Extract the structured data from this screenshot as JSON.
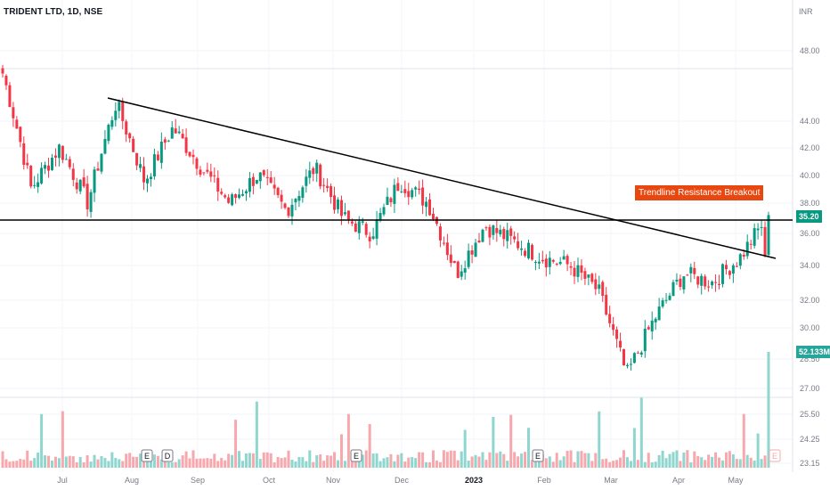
{
  "header": {
    "symbol": "TRIDENT LTD, 1D, NSE",
    "currency": "INR"
  },
  "annotation": "Trendline Resistance Breakout",
  "last_price_label": "35.20",
  "volume_label": "52.133M",
  "colors": {
    "up": "#089981",
    "down": "#f23645",
    "vol_up": "#8fd6cf",
    "vol_down": "#f7a8ad",
    "line": "#000000",
    "annotation": "#e8470f"
  },
  "event_markers": [
    {
      "label": "E",
      "month_index": 1
    },
    {
      "label": "D",
      "month_index": 2
    },
    {
      "label": "E",
      "month_index": 4
    },
    {
      "label": "E",
      "month_index": 7
    },
    {
      "label": "E",
      "month_index": 11
    }
  ],
  "chart_data": {
    "type": "candlestick",
    "y_axis": {
      "ticks": [
        "48.00",
        "44.00",
        "42.00",
        "40.00",
        "38.00",
        "36.00",
        "34.00",
        "32.00",
        "30.00",
        "28.50",
        "27.00",
        "25.50",
        "24.25",
        "23.15"
      ],
      "scale": "log"
    },
    "x_axis": {
      "ticks": [
        "Jul",
        "Aug",
        "Sep",
        "Oct",
        "Nov",
        "Dec",
        "2023",
        "Feb",
        "Mar",
        "Apr",
        "May"
      ]
    },
    "horizontal_level": 35.0,
    "trendline": {
      "from": {
        "date": "Aug 2022",
        "price": 44.0
      },
      "to": {
        "date": "May 2023",
        "price": 32.5
      }
    },
    "close_series_keypoints": [
      {
        "t": "Jun",
        "close": 46.0
      },
      {
        "t": "Jun",
        "close": 37.0
      },
      {
        "t": "Jul",
        "close": 40.0
      },
      {
        "t": "Jul",
        "close": 36.0
      },
      {
        "t": "Aug",
        "close": 43.5
      },
      {
        "t": "Aug",
        "close": 37.5
      },
      {
        "t": "Sep",
        "close": 41.5
      },
      {
        "t": "Sep",
        "close": 38.5
      },
      {
        "t": "Oct",
        "close": 36.0
      },
      {
        "t": "Oct",
        "close": 38.0
      },
      {
        "t": "Oct",
        "close": 35.5
      },
      {
        "t": "Nov",
        "close": 38.5
      },
      {
        "t": "Nov",
        "close": 35.0
      },
      {
        "t": "Nov",
        "close": 34.0
      },
      {
        "t": "Dec",
        "close": 37.5
      },
      {
        "t": "Dec",
        "close": 36.0
      },
      {
        "t": "2023",
        "close": 31.5
      },
      {
        "t": "2023",
        "close": 34.5
      },
      {
        "t": "2023",
        "close": 33.5
      },
      {
        "t": "Feb",
        "close": 32.5
      },
      {
        "t": "Feb",
        "close": 32.0
      },
      {
        "t": "Mar",
        "close": 30.5
      },
      {
        "t": "Mar",
        "close": 26.0
      },
      {
        "t": "Apr",
        "close": 29.0
      },
      {
        "t": "Apr",
        "close": 31.5
      },
      {
        "t": "May",
        "close": 31.0
      },
      {
        "t": "May",
        "close": 32.5
      },
      {
        "t": "May",
        "close": 35.2
      }
    ]
  }
}
